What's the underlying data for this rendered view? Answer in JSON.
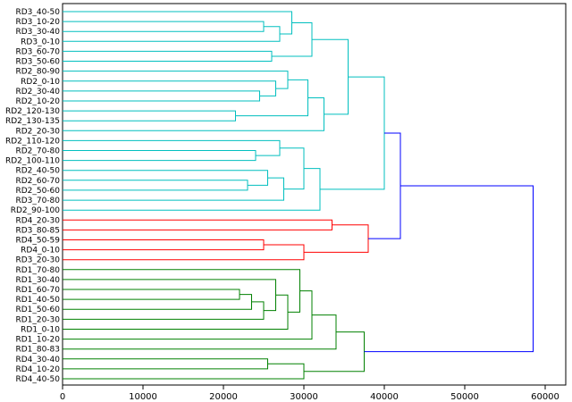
{
  "figure": {
    "background": "#ffffff"
  },
  "chart_data": {
    "type": "dendrogram",
    "title": "",
    "xlabel": "",
    "ylabel": "",
    "orientation": "left",
    "grid": false,
    "legend": "none",
    "xlim": [
      0,
      62500
    ],
    "x_ticks": [
      0,
      10000,
      20000,
      30000,
      40000,
      50000,
      60000
    ],
    "colors": {
      "cyan": "#00bfbf",
      "red": "#ff0000",
      "green": "#008000",
      "blue": "#0000ff"
    },
    "leaves": [
      "RD3_40-50",
      "RD3_10-20",
      "RD3_30-40",
      "RD3_0-10",
      "RD3_60-70",
      "RD3_50-60",
      "RD2_80-90",
      "RD2_0-10",
      "RD2_30-40",
      "RD2_10-20",
      "RD2_120-130",
      "RD2_130-135",
      "RD2_20-30",
      "RD2_110-120",
      "RD2_70-80",
      "RD2_100-110",
      "RD2_40-50",
      "RD2_60-70",
      "RD2_50-60",
      "RD3_70-80",
      "RD2_90-100",
      "RD4_20-30",
      "RD3_80-85",
      "RD4_50-59",
      "RD4_0-10",
      "RD3_20-30",
      "RD1_70-80",
      "RD1_30-40",
      "RD1_60-70",
      "RD1_40-50",
      "RD1_50-60",
      "RD1_20-30",
      "RD1_0-10",
      "RD1_10-20",
      "RD1_80-83",
      "RD4_30-40",
      "RD4_10-20",
      "RD4_40-50"
    ],
    "tree": {
      "d": 58500,
      "c": "blue",
      "ch": [
        {
          "d": 42000,
          "c": "blue",
          "ch": [
            {
              "d": 40000,
              "c": "cyan",
              "ch": [
                {
                  "d": 35500,
                  "c": "cyan",
                  "ch": [
                    {
                      "d": 31000,
                      "c": "cyan",
                      "ch": [
                        {
                          "d": 28500,
                          "c": "cyan",
                          "ch": [
                            0,
                            {
                              "d": 27000,
                              "c": "cyan",
                              "ch": [
                                3,
                                {
                                  "d": 25000,
                                  "c": "cyan",
                                  "ch": [
                                    1,
                                    2
                                  ]
                                }
                              ]
                            }
                          ]
                        },
                        {
                          "d": 26000,
                          "c": "cyan",
                          "ch": [
                            4,
                            5
                          ]
                        }
                      ]
                    },
                    {
                      "d": 32500,
                      "c": "cyan",
                      "ch": [
                        {
                          "d": 30500,
                          "c": "cyan",
                          "ch": [
                            {
                              "d": 28000,
                              "c": "cyan",
                              "ch": [
                                6,
                                {
                                  "d": 26500,
                                  "c": "cyan",
                                  "ch": [
                                    7,
                                    {
                                      "d": 24500,
                                      "c": "cyan",
                                      "ch": [
                                        8,
                                        9
                                      ]
                                    }
                                  ]
                                }
                              ]
                            },
                            {
                              "d": 21500,
                              "c": "cyan",
                              "ch": [
                                10,
                                11
                              ]
                            }
                          ]
                        },
                        12
                      ]
                    }
                  ]
                },
                {
                  "d": 32000,
                  "c": "cyan",
                  "ch": [
                    {
                      "d": 30000,
                      "c": "cyan",
                      "ch": [
                        {
                          "d": 27000,
                          "c": "cyan",
                          "ch": [
                            13,
                            {
                              "d": 24000,
                              "c": "cyan",
                              "ch": [
                                14,
                                15
                              ]
                            }
                          ]
                        },
                        {
                          "d": 27500,
                          "c": "cyan",
                          "ch": [
                            {
                              "d": 25500,
                              "c": "cyan",
                              "ch": [
                                16,
                                {
                                  "d": 23000,
                                  "c": "cyan",
                                  "ch": [
                                    17,
                                    18
                                  ]
                                }
                              ]
                            },
                            19
                          ]
                        }
                      ]
                    },
                    20
                  ]
                }
              ]
            },
            {
              "d": 38000,
              "c": "red",
              "ch": [
                {
                  "d": 33500,
                  "c": "red",
                  "ch": [
                    21,
                    22
                  ]
                },
                {
                  "d": 30000,
                  "c": "red",
                  "ch": [
                    {
                      "d": 25000,
                      "c": "red",
                      "ch": [
                        23,
                        24
                      ]
                    },
                    25
                  ]
                }
              ]
            }
          ]
        },
        {
          "d": 37500,
          "c": "green",
          "ch": [
            {
              "d": 34000,
              "c": "green",
              "ch": [
                {
                  "d": 31000,
                  "c": "green",
                  "ch": [
                    {
                      "d": 29500,
                      "c": "green",
                      "ch": [
                        26,
                        {
                          "d": 28000,
                          "c": "green",
                          "ch": [
                            {
                              "d": 26500,
                              "c": "green",
                              "ch": [
                                27,
                                {
                                  "d": 25000,
                                  "c": "green",
                                  "ch": [
                                    {
                                      "d": 23500,
                                      "c": "green",
                                      "ch": [
                                        {
                                          "d": 22000,
                                          "c": "green",
                                          "ch": [
                                            28,
                                            29
                                          ]
                                        },
                                        30
                                      ]
                                    },
                                    31
                                  ]
                                }
                              ]
                            },
                            32
                          ]
                        }
                      ]
                    },
                    33
                  ]
                },
                34
              ]
            },
            {
              "d": 30000,
              "c": "green",
              "ch": [
                {
                  "d": 25500,
                  "c": "green",
                  "ch": [
                    35,
                    36
                  ]
                },
                37
              ]
            }
          ]
        }
      ]
    }
  }
}
